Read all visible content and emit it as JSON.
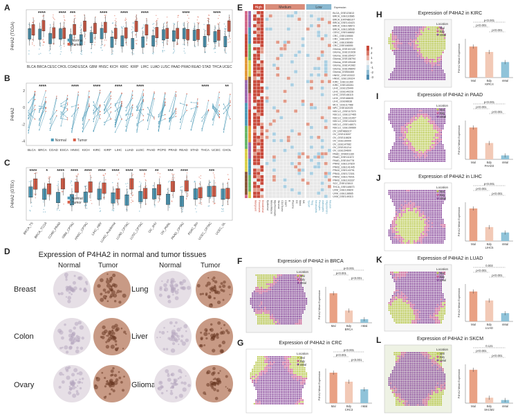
{
  "panel_labels": [
    "A",
    "B",
    "C",
    "D",
    "E",
    "F",
    "G",
    "H",
    "I",
    "J",
    "K",
    "L"
  ],
  "panelA": {
    "ylabel": "P4HA2 (TCGA)",
    "cancers": [
      "BLCA",
      "BRCA",
      "CESC",
      "CHOL",
      "COAD",
      "ESCA",
      "GBM",
      "HNSC",
      "KICH",
      "KIRC",
      "KIRP",
      "LIHC",
      "LUAD",
      "LUSC",
      "PAAD",
      "PRAD",
      "READ",
      "STAD",
      "THCA",
      "UCEC"
    ],
    "sig": [
      "",
      "****",
      "",
      "****",
      "***",
      "",
      "",
      "****",
      "",
      "****",
      "",
      "****",
      "",
      "",
      "",
      "****",
      "",
      "",
      "****",
      ""
    ],
    "legend": [
      "Normal",
      "Tumor"
    ],
    "normal_color": "#4f9bb8",
    "tumor_color": "#d9604a"
  },
  "panelB": {
    "ylabel": "P4HA2",
    "ticks": [
      "2",
      "0",
      "-2",
      "-4"
    ],
    "cancers": [
      "BLCA",
      "BRCA",
      "COAD",
      "ESCA",
      "HNSC",
      "KICH",
      "KIRC",
      "KIRP",
      "LIHC",
      "LUAD",
      "LUSC",
      "PAAD",
      "PCPG",
      "PRAD",
      "READ",
      "STAD",
      "THCA",
      "UCEC",
      "CHOL"
    ],
    "sig": [
      "",
      "****",
      "",
      "",
      "****",
      "",
      "****",
      "",
      "****",
      "",
      "****",
      "",
      "",
      "",
      "",
      "",
      "****",
      "",
      "**"
    ],
    "legend": [
      "Normal",
      "Tumor"
    ]
  },
  "panelC": {
    "ylabel": "P4HA2 (GTEx)",
    "cancers": [
      "BRCA_TS",
      "BRCA_TCGA",
      "COAD_PRAD",
      "GBM_CPTAC",
      "HNSC_CPTAC",
      "LIHC_HBV",
      "LUAD_Academia",
      "LUAD_CPTAC",
      "LUSC_CPTAC",
      "OV_JHU",
      "OV_PNNL",
      "PAAD_CPTAC",
      "PDAC_Bio",
      "UCEC_CPTAC",
      "UCEC_OL"
    ],
    "sig": [
      "****",
      "*",
      "****",
      "****",
      "****",
      "****",
      "****",
      "****",
      "****",
      "**",
      "***",
      "****",
      "",
      "***",
      ""
    ],
    "legend": [
      "Normal",
      "Tumor"
    ]
  },
  "panelD": {
    "title": "Expression of P4HA2 in normal and tumor tissues",
    "col_headers": [
      "Normal",
      "Tumor",
      "Normal",
      "Tumor"
    ],
    "left_tissues": [
      "Breast",
      "Colon",
      "Ovary"
    ],
    "right_tissues": [
      "Lung",
      "Liver",
      "Glioma"
    ]
  },
  "panelE": {
    "groups": [
      "High",
      "Medium",
      "Low"
    ],
    "group_colors": [
      "#c94a3b",
      "#d98c7a",
      "#8ab8d0"
    ],
    "col_header": "Expression",
    "datasets": [
      "BLCA_GSE123813",
      "BRCA_GSE110686",
      "BRCA_EMTAB8107",
      "BRCA_GSE143423",
      "BRCA_GSE148673",
      "BRCA_GSE138536",
      "CESC_GSE168652",
      "CRC_GSE139555",
      "CRC_GSE146771",
      "CRC_GSE108989",
      "CRC_GSE166555",
      "Glioma_GSE102130",
      "Glioma_GSE131928",
      "Glioma_GSE135437",
      "Glioma_GSE138794",
      "Glioma_GSE139448",
      "Glioma_GSE141982",
      "Glioma_GSE148842",
      "Glioma_GSE84465",
      "HNSC_GSE103322",
      "HNSC_GSE139324",
      "KIRC_GSE111360",
      "KIRC_GSE145281",
      "LIHC_GSE125449",
      "LIHC_GSE140228",
      "LIHC_GSE146115",
      "LIHC_GSE166635",
      "LIHC_GSE98638",
      "MCC_GSE117988",
      "NPC_GSE162025",
      "NSCLC_GSE117570",
      "NSCLC_GSE127465",
      "NSCLC_GSE131907",
      "NSCLC_GSE143423",
      "NSCLC_GSE148071",
      "NSCLC_GSE150660",
      "OV_EMTAB8107",
      "OV_GSE115007",
      "OV_GSE118828",
      "OV_GSE130000",
      "OV_GSE147082",
      "OV_GSE151214",
      "OV_GSE154600",
      "PAAD_CRA001160",
      "PAAD_GSE111672",
      "PAAD_GSE154778",
      "PRAD_GSE137829",
      "PRAD_GSE141445",
      "PRAD_GSE143791",
      "PRAD_GSE172301",
      "PRAD_GSE176031",
      "PRAD_GSE193337",
      "SCC_GSE123813",
      "THCA_GSE148673",
      "UVM_GSE139829",
      "UVM_GSE138665",
      "UVM_GSE149313"
    ],
    "cell_types": [
      "Malignant",
      "Fibroblasts",
      "Endothelial",
      "Epithelial",
      "Mono/Macro",
      "Myofibroblasts",
      "Stromal",
      "CD4Tconv",
      "CD8T",
      "B",
      "Plasma",
      "DC",
      "Mast",
      "NK",
      "Tprolif",
      "Treg",
      "Neutrophils",
      "Pericytes",
      "Astrocytes",
      "Oligodendro",
      "Neuron"
    ],
    "scale": [
      "3",
      "2",
      "1",
      "0",
      "-1",
      "-2",
      "-3"
    ]
  },
  "spatial": [
    {
      "id": "F",
      "title": "Expression of P4HA2 in BRCA",
      "pvals": [
        "p<0.001",
        "p<0.001",
        "p<0.001"
      ],
      "groups": [
        "Mal",
        "Bdy",
        "nMal"
      ],
      "xlabel": "BRCA",
      "ylabel": "P4HA2 Mean Expression",
      "legend_title": "Location",
      "legend": [
        "Mal",
        "Bdy",
        "nMal"
      ],
      "bars": [
        0.82,
        0.34,
        0.1
      ]
    },
    {
      "id": "G",
      "title": "Expression of P4HA2 in CRC",
      "pvals": [
        "p<0.001",
        "p<0.001",
        "p<0.001"
      ],
      "groups": [
        "Mal",
        "Bdy",
        "nMal"
      ],
      "xlabel": "CRC3",
      "ylabel": "P4HA2 Mean Expression",
      "legend_title": "Location",
      "legend": [
        "Mal",
        "Bdy",
        "nMal"
      ],
      "bars": [
        0.88,
        0.62,
        0.4
      ]
    },
    {
      "id": "H",
      "title": "Expression of P4HA2 in KIRC",
      "pvals": [
        "p<0.001",
        "p<0.001",
        "p<0.001"
      ],
      "groups": [
        "Mal",
        "Bdy",
        "nMal"
      ],
      "xlabel": "KIRC4",
      "ylabel": "P4HA2 Mean Expression",
      "legend_title": "Location",
      "legend": [
        "Mal",
        "Bdy",
        "nMal"
      ],
      "bars": [
        0.8,
        0.66,
        0.4
      ]
    },
    {
      "id": "I",
      "title": "Expression of P4HA2 in PAAD",
      "pvals": [
        "p<0.001",
        "p<0.001",
        "p<0.001"
      ],
      "groups": [
        "Mal",
        "Bdy",
        "nMal"
      ],
      "xlabel": "PAAD3",
      "ylabel": "P4HA2 Mean Expression",
      "legend_title": "Location",
      "legend": [
        "Mal",
        "Bdy",
        "nMal"
      ],
      "bars": [
        0.82,
        0.42,
        0.1
      ]
    },
    {
      "id": "J",
      "title": "Expression of P4HA2 in LIHC",
      "pvals": [
        "p<0.001",
        "p<0.001",
        "p<0.001"
      ],
      "groups": [
        "Mal",
        "Bdy",
        "nMal"
      ],
      "xlabel": "LIHC5",
      "ylabel": "P4HA2 Mean Expression",
      "legend_title": "Location",
      "legend": [
        "Mal",
        "Bdy",
        "nMal"
      ],
      "bars": [
        0.84,
        0.36,
        0.22
      ]
    },
    {
      "id": "K",
      "title": "Expression of P4HA2 in LUAD",
      "pvals": [
        "0.003",
        "p<0.001",
        "p<0.001"
      ],
      "groups": [
        "Mal",
        "Bdy",
        "nMal"
      ],
      "xlabel": "LUAD",
      "ylabel": "P4HA2 Mean Expression",
      "legend_title": "Location",
      "legend": [
        "Mal",
        "Bdy",
        "nMal"
      ],
      "bars": [
        0.8,
        0.56,
        0.22
      ]
    },
    {
      "id": "L",
      "title": "Expression of P4HA2 in SKCM",
      "pvals": [
        "0.121",
        "p<0.001",
        "p<0.001"
      ],
      "groups": [
        "Mal",
        "Bdy",
        "nMal"
      ],
      "xlabel": "SKCM2",
      "ylabel": "P4HA2 Mean Expression",
      "legend_title": "Location",
      "legend": [
        "Mal",
        "Bdy",
        "nMal"
      ],
      "bars": [
        0.86,
        0.14,
        0.08
      ]
    }
  ],
  "colors": {
    "mal": "#e9a184",
    "bdy": "#f2c9b6",
    "nmal": "#8fc3d9",
    "tissue_purple": "#8a4a9c",
    "tissue_green": "#b8c84a",
    "tissue_magenta": "#c8568e"
  }
}
